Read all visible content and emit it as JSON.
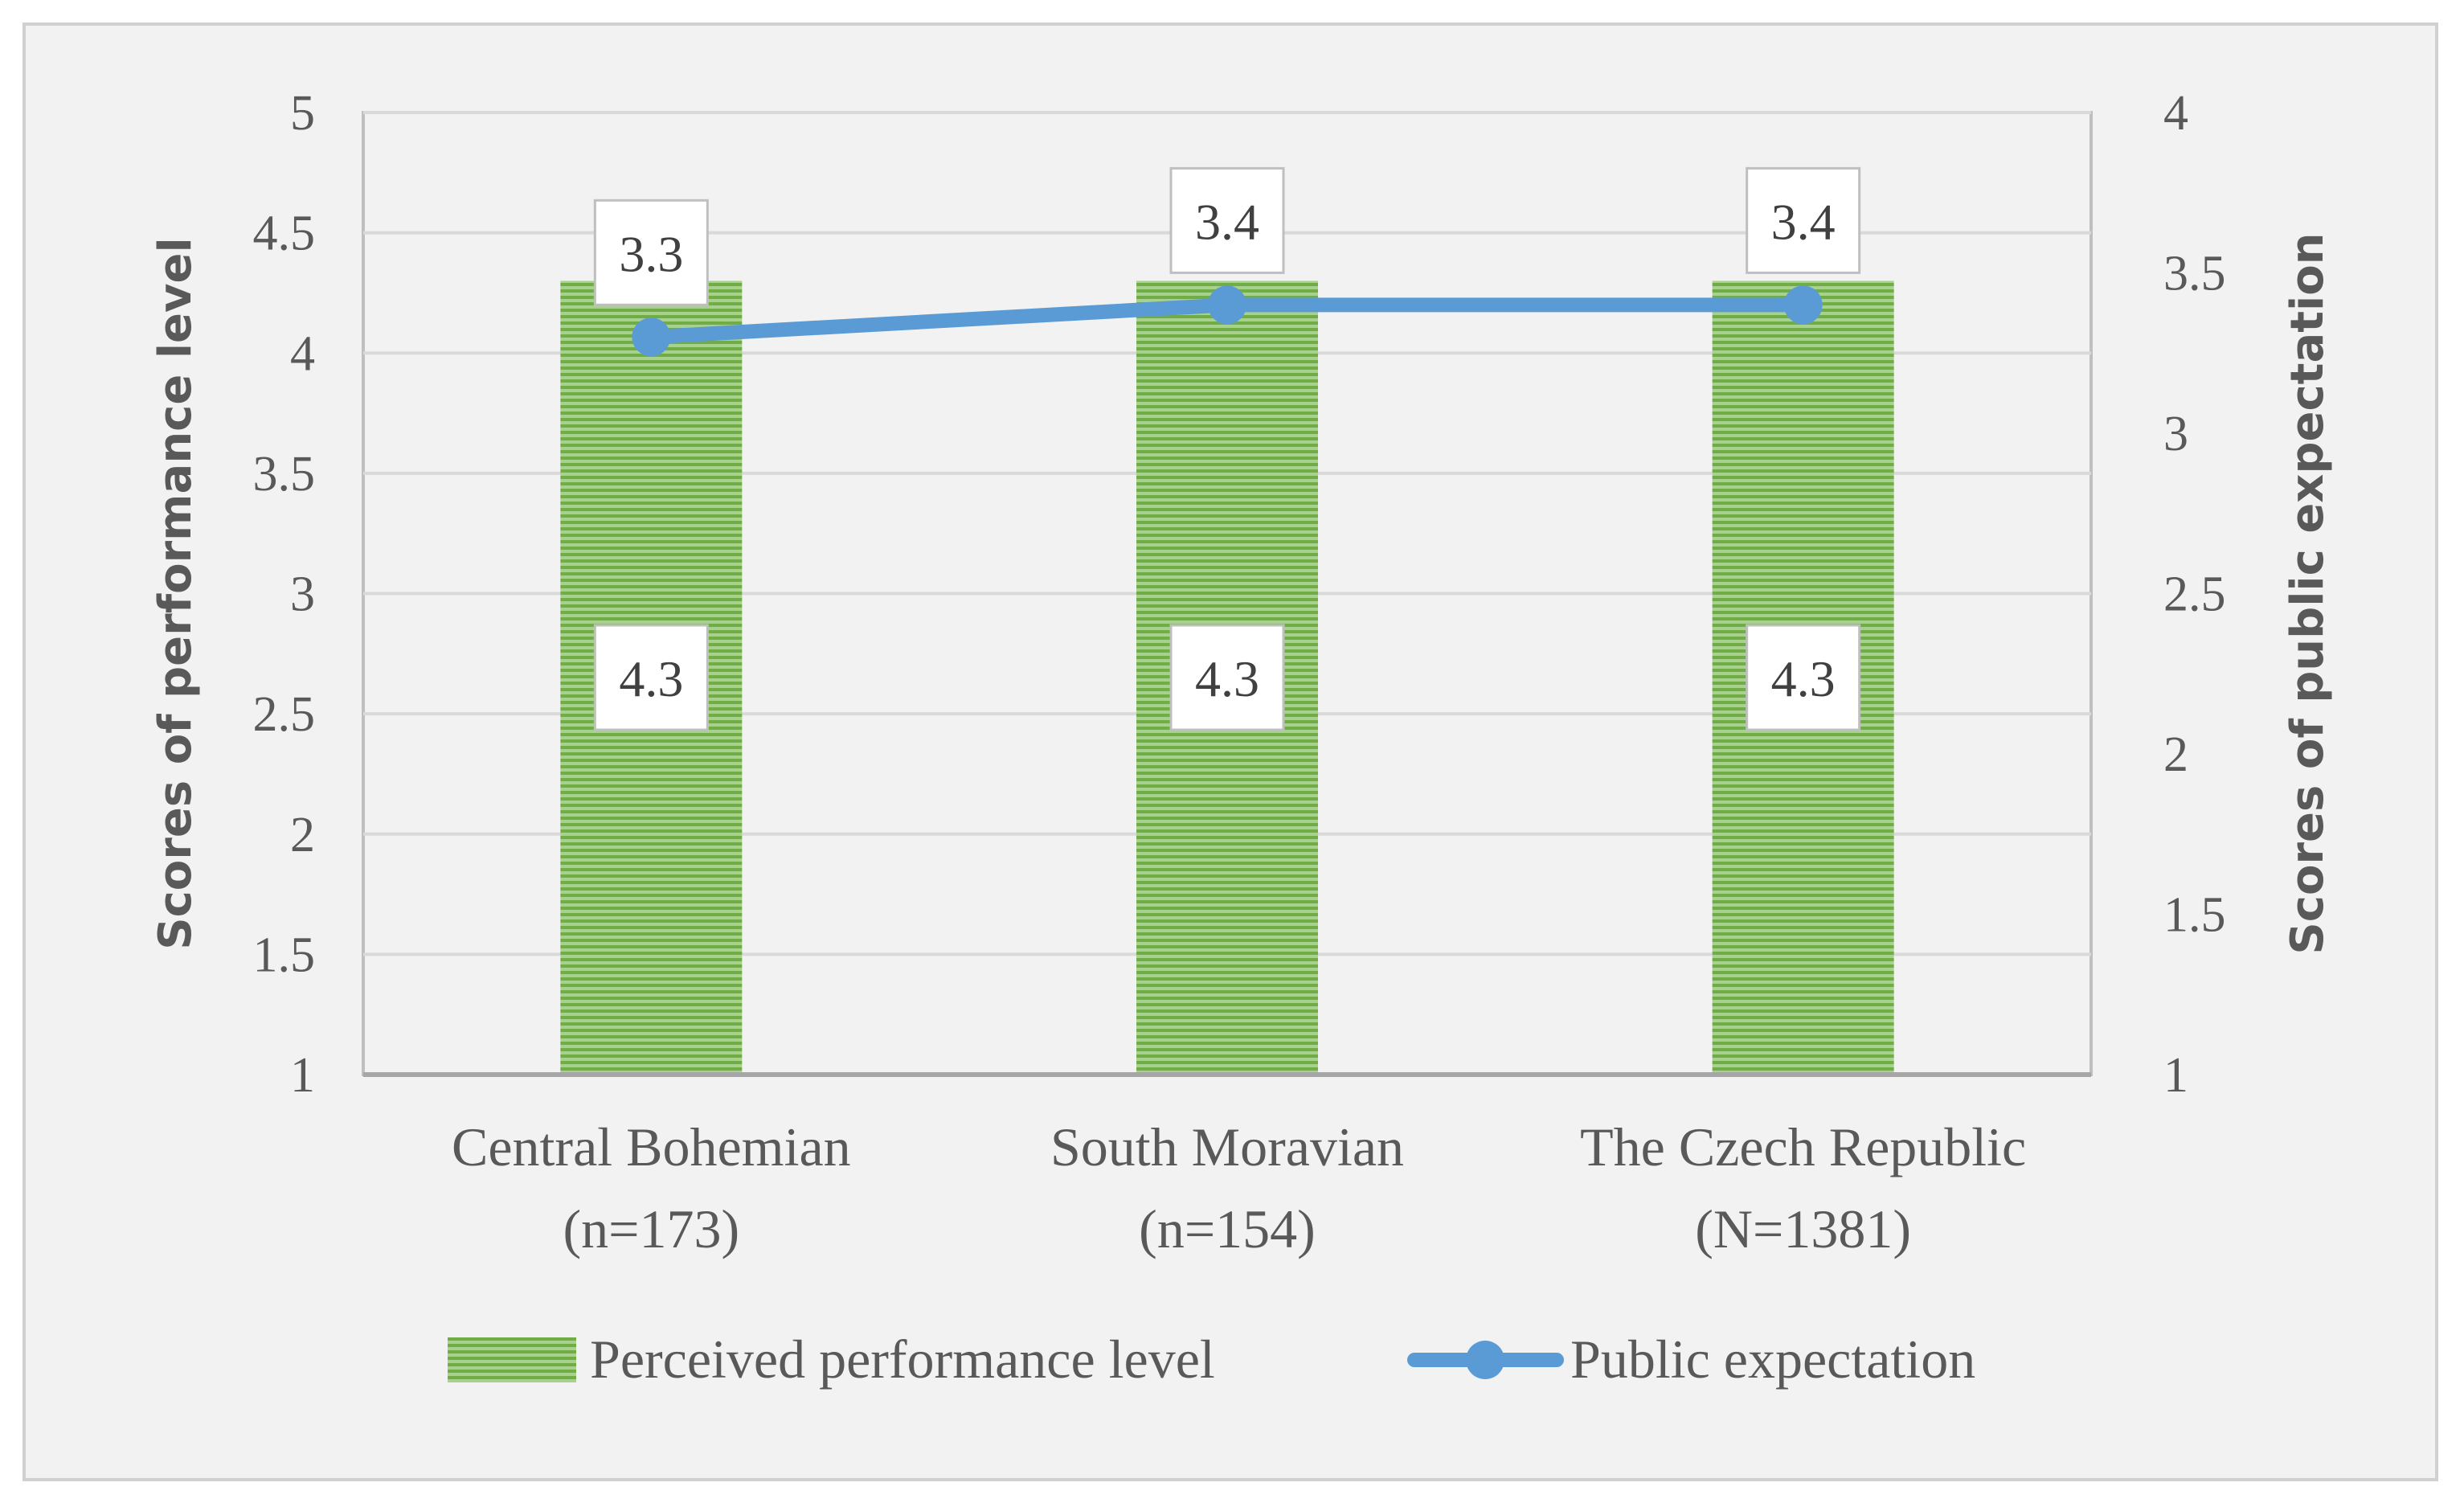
{
  "chart_data": {
    "type": "bar+line",
    "categories": [
      [
        "Central Bohemian",
        "(n=173)"
      ],
      [
        "South Moravian",
        "(n=154)"
      ],
      [
        "The Czech Republic",
        "(N=1381)"
      ]
    ],
    "series": [
      {
        "name": "Perceived performance level",
        "type": "bar",
        "axis": "left",
        "values": [
          4.3,
          4.3,
          4.3
        ],
        "labels": [
          "4.3",
          "4.3",
          "4.3"
        ],
        "color": "#70ad47"
      },
      {
        "name": "Public expectation",
        "type": "line",
        "axis": "right",
        "values": [
          3.3,
          3.4,
          3.4
        ],
        "labels": [
          "3.3",
          "3.4",
          "3.4"
        ],
        "color": "#5b9bd5"
      }
    ],
    "y_left": {
      "label": "Scores of performance level",
      "range": [
        1,
        5
      ],
      "ticks": [
        "1",
        "1.5",
        "2",
        "2.5",
        "3",
        "3.5",
        "4",
        "4.5",
        "5"
      ]
    },
    "y_right": {
      "label": "Scores of public expectation",
      "range": [
        1,
        4
      ],
      "ticks": [
        "1",
        "1.5",
        "2",
        "2.5",
        "3",
        "3.5",
        "4"
      ]
    },
    "grid": true,
    "legend_position": "bottom"
  }
}
